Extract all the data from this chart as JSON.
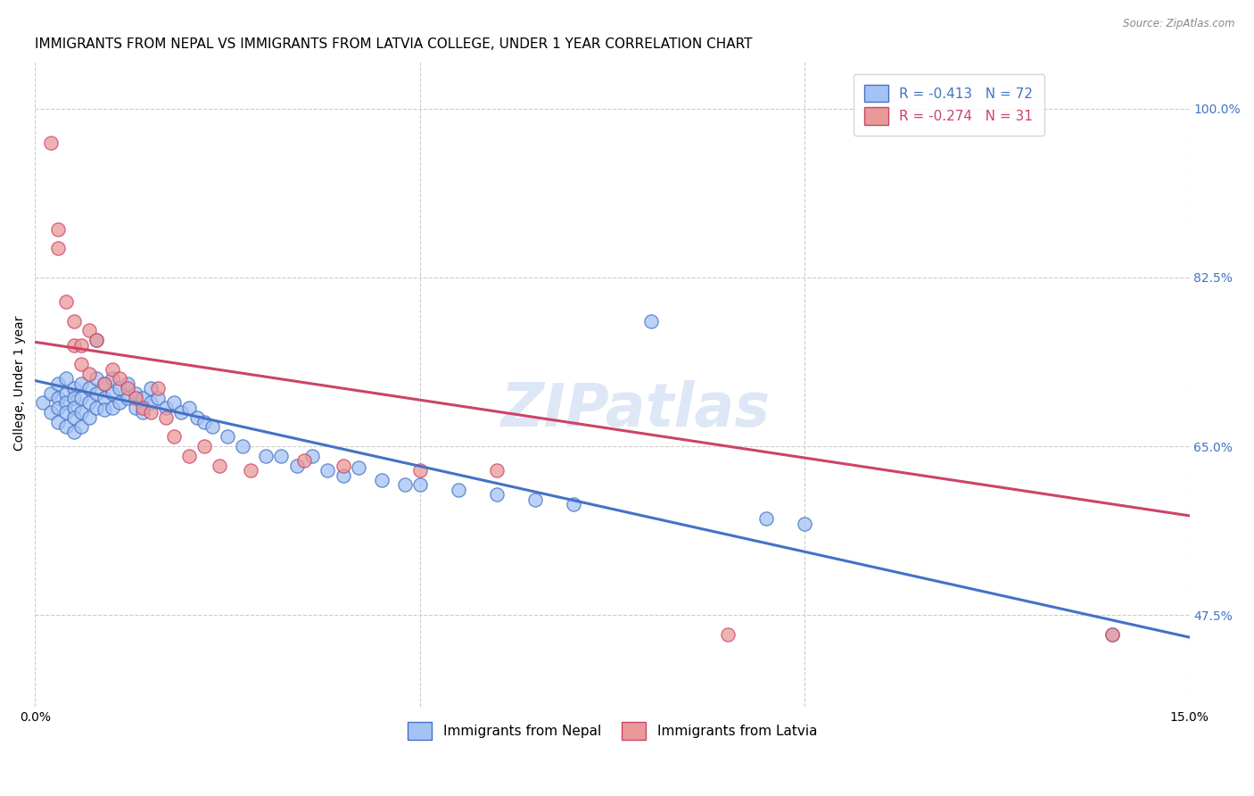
{
  "title": "IMMIGRANTS FROM NEPAL VS IMMIGRANTS FROM LATVIA COLLEGE, UNDER 1 YEAR CORRELATION CHART",
  "source": "Source: ZipAtlas.com",
  "ylabel": "College, Under 1 year",
  "ylabel_ticks": [
    "100.0%",
    "82.5%",
    "65.0%",
    "47.5%"
  ],
  "xlim": [
    0.0,
    0.15
  ],
  "ylim": [
    0.38,
    1.05
  ],
  "legend_nepal": "R = -0.413   N = 72",
  "legend_latvia": "R = -0.274   N = 31",
  "nepal_color": "#a4c2f4",
  "latvia_color": "#ea9999",
  "nepal_line_color": "#4472c4",
  "latvia_line_color": "#cc4466",
  "nepal_scatter": [
    [
      0.001,
      0.695
    ],
    [
      0.002,
      0.705
    ],
    [
      0.002,
      0.685
    ],
    [
      0.003,
      0.715
    ],
    [
      0.003,
      0.7
    ],
    [
      0.003,
      0.69
    ],
    [
      0.003,
      0.675
    ],
    [
      0.004,
      0.72
    ],
    [
      0.004,
      0.705
    ],
    [
      0.004,
      0.695
    ],
    [
      0.004,
      0.685
    ],
    [
      0.004,
      0.67
    ],
    [
      0.005,
      0.71
    ],
    [
      0.005,
      0.7
    ],
    [
      0.005,
      0.69
    ],
    [
      0.005,
      0.68
    ],
    [
      0.005,
      0.665
    ],
    [
      0.006,
      0.715
    ],
    [
      0.006,
      0.7
    ],
    [
      0.006,
      0.685
    ],
    [
      0.006,
      0.67
    ],
    [
      0.007,
      0.71
    ],
    [
      0.007,
      0.695
    ],
    [
      0.007,
      0.68
    ],
    [
      0.008,
      0.76
    ],
    [
      0.008,
      0.72
    ],
    [
      0.008,
      0.705
    ],
    [
      0.008,
      0.69
    ],
    [
      0.009,
      0.715
    ],
    [
      0.009,
      0.7
    ],
    [
      0.009,
      0.688
    ],
    [
      0.01,
      0.72
    ],
    [
      0.01,
      0.705
    ],
    [
      0.01,
      0.69
    ],
    [
      0.011,
      0.71
    ],
    [
      0.011,
      0.695
    ],
    [
      0.012,
      0.715
    ],
    [
      0.012,
      0.7
    ],
    [
      0.013,
      0.705
    ],
    [
      0.013,
      0.69
    ],
    [
      0.014,
      0.7
    ],
    [
      0.014,
      0.685
    ],
    [
      0.015,
      0.71
    ],
    [
      0.015,
      0.695
    ],
    [
      0.016,
      0.7
    ],
    [
      0.017,
      0.69
    ],
    [
      0.018,
      0.695
    ],
    [
      0.019,
      0.685
    ],
    [
      0.02,
      0.69
    ],
    [
      0.021,
      0.68
    ],
    [
      0.022,
      0.675
    ],
    [
      0.023,
      0.67
    ],
    [
      0.025,
      0.66
    ],
    [
      0.027,
      0.65
    ],
    [
      0.03,
      0.64
    ],
    [
      0.032,
      0.64
    ],
    [
      0.034,
      0.63
    ],
    [
      0.036,
      0.64
    ],
    [
      0.038,
      0.625
    ],
    [
      0.04,
      0.62
    ],
    [
      0.042,
      0.628
    ],
    [
      0.045,
      0.615
    ],
    [
      0.048,
      0.61
    ],
    [
      0.05,
      0.61
    ],
    [
      0.055,
      0.605
    ],
    [
      0.06,
      0.6
    ],
    [
      0.065,
      0.595
    ],
    [
      0.07,
      0.59
    ],
    [
      0.08,
      0.78
    ],
    [
      0.095,
      0.575
    ],
    [
      0.1,
      0.57
    ],
    [
      0.14,
      0.455
    ]
  ],
  "latvia_scatter": [
    [
      0.002,
      0.965
    ],
    [
      0.003,
      0.875
    ],
    [
      0.003,
      0.855
    ],
    [
      0.004,
      0.8
    ],
    [
      0.005,
      0.78
    ],
    [
      0.005,
      0.755
    ],
    [
      0.006,
      0.755
    ],
    [
      0.006,
      0.735
    ],
    [
      0.007,
      0.77
    ],
    [
      0.007,
      0.725
    ],
    [
      0.008,
      0.76
    ],
    [
      0.009,
      0.715
    ],
    [
      0.01,
      0.73
    ],
    [
      0.011,
      0.72
    ],
    [
      0.012,
      0.71
    ],
    [
      0.013,
      0.7
    ],
    [
      0.014,
      0.69
    ],
    [
      0.015,
      0.685
    ],
    [
      0.016,
      0.71
    ],
    [
      0.017,
      0.68
    ],
    [
      0.018,
      0.66
    ],
    [
      0.02,
      0.64
    ],
    [
      0.022,
      0.65
    ],
    [
      0.024,
      0.63
    ],
    [
      0.028,
      0.625
    ],
    [
      0.035,
      0.635
    ],
    [
      0.04,
      0.63
    ],
    [
      0.05,
      0.625
    ],
    [
      0.06,
      0.625
    ],
    [
      0.09,
      0.455
    ],
    [
      0.14,
      0.455
    ]
  ],
  "nepal_trendline": [
    [
      0.0,
      0.718
    ],
    [
      0.15,
      0.452
    ]
  ],
  "latvia_trendline": [
    [
      0.0,
      0.758
    ],
    [
      0.15,
      0.578
    ]
  ],
  "watermark": "ZIPatlas",
  "grid_color": "#cccccc",
  "bg_color": "#ffffff",
  "right_tick_color": "#4472c4",
  "title_fontsize": 11,
  "label_fontsize": 10,
  "tick_fontsize": 10
}
